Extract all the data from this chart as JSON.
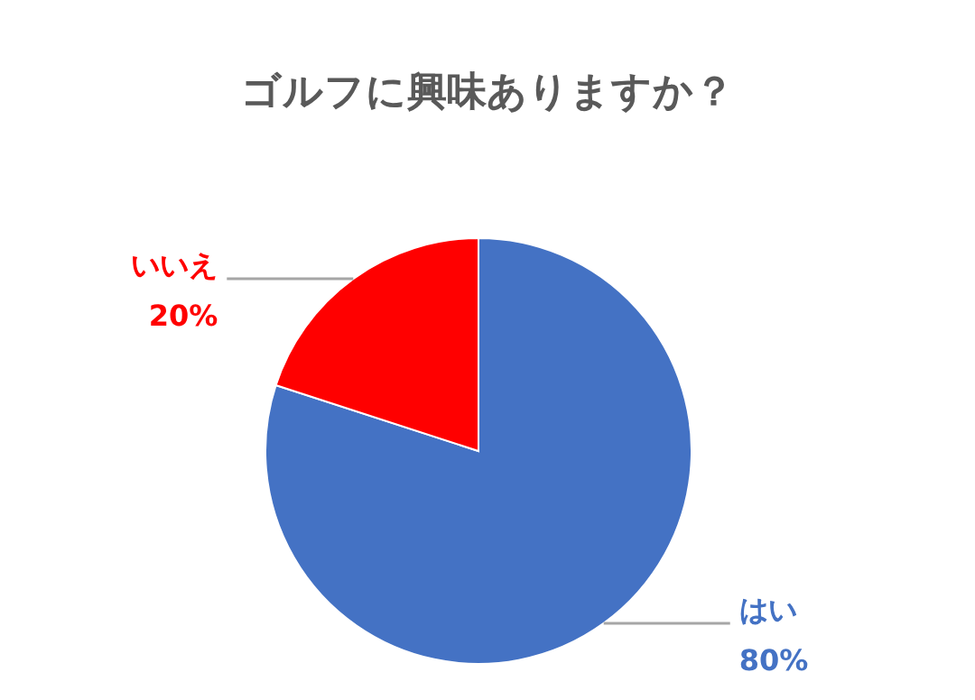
{
  "chart_data": {
    "type": "pie",
    "title": "ゴルフに興味ありますか？",
    "categories": [
      "はい",
      "いいえ"
    ],
    "values": [
      80,
      20
    ],
    "colors": [
      "#4472c4",
      "#ff0000"
    ],
    "value_labels": [
      "80%",
      "20%"
    ]
  }
}
